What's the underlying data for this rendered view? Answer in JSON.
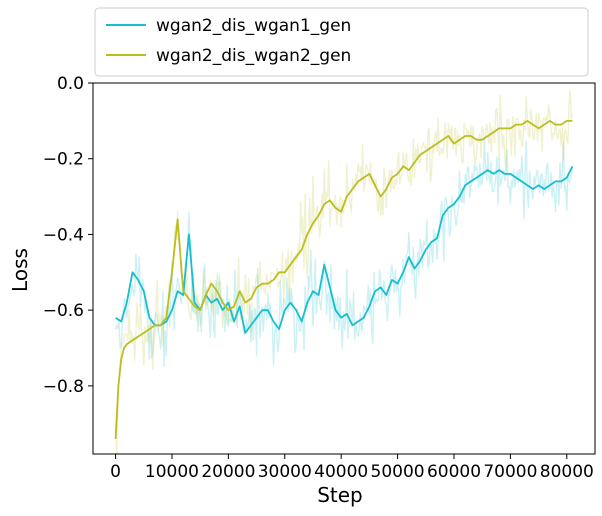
{
  "chart_data": {
    "type": "line",
    "xlabel": "Step",
    "ylabel": "Loss",
    "xlim": [
      -4000,
      85000
    ],
    "ylim": [
      -0.98,
      0.0
    ],
    "x_ticks": [
      0,
      10000,
      20000,
      30000,
      40000,
      50000,
      60000,
      70000,
      80000
    ],
    "x_tick_labels": [
      "0",
      "10000",
      "20000",
      "30000",
      "40000",
      "50000",
      "60000",
      "70000",
      "80000"
    ],
    "y_ticks": [
      0.0,
      -0.2,
      -0.4,
      -0.6,
      -0.8
    ],
    "y_tick_labels": [
      "0.0",
      "−0.2",
      "−0.4",
      "−0.6",
      "−0.8"
    ],
    "legend_position": "top-outside",
    "colors": {
      "series1": "#17becf",
      "series2": "#bcbd22",
      "background": "#ffffff",
      "axis": "#000000"
    },
    "series": [
      {
        "name": "wgan2_dis_wgan1_gen",
        "color": "#17becf",
        "raw_alpha": 0.22,
        "x": [
          0,
          1000,
          2000,
          3000,
          4000,
          5000,
          6000,
          7000,
          8000,
          9000,
          10000,
          11000,
          12000,
          13000,
          14000,
          15000,
          16000,
          17000,
          18000,
          19000,
          20000,
          21000,
          22000,
          23000,
          24000,
          25000,
          26000,
          27000,
          28000,
          29000,
          30000,
          31000,
          32000,
          33000,
          34000,
          35000,
          36000,
          37000,
          38000,
          39000,
          40000,
          41000,
          42000,
          43000,
          44000,
          45000,
          46000,
          47000,
          48000,
          49000,
          50000,
          51000,
          52000,
          53000,
          54000,
          55000,
          56000,
          57000,
          58000,
          59000,
          60000,
          61000,
          62000,
          63000,
          64000,
          65000,
          66000,
          67000,
          68000,
          69000,
          70000,
          71000,
          72000,
          73000,
          74000,
          75000,
          76000,
          77000,
          78000,
          79000,
          80000,
          81000
        ],
        "values": [
          -0.62,
          -0.63,
          -0.58,
          -0.5,
          -0.52,
          -0.55,
          -0.62,
          -0.64,
          -0.64,
          -0.63,
          -0.6,
          -0.55,
          -0.56,
          -0.4,
          -0.58,
          -0.6,
          -0.56,
          -0.58,
          -0.57,
          -0.6,
          -0.58,
          -0.63,
          -0.59,
          -0.66,
          -0.64,
          -0.62,
          -0.6,
          -0.6,
          -0.63,
          -0.65,
          -0.6,
          -0.58,
          -0.6,
          -0.63,
          -0.58,
          -0.55,
          -0.56,
          -0.48,
          -0.54,
          -0.6,
          -0.62,
          -0.61,
          -0.64,
          -0.63,
          -0.62,
          -0.59,
          -0.55,
          -0.54,
          -0.56,
          -0.52,
          -0.53,
          -0.5,
          -0.46,
          -0.49,
          -0.47,
          -0.44,
          -0.42,
          -0.41,
          -0.35,
          -0.33,
          -0.32,
          -0.3,
          -0.27,
          -0.26,
          -0.25,
          -0.24,
          -0.23,
          -0.24,
          -0.23,
          -0.24,
          -0.24,
          -0.25,
          -0.26,
          -0.27,
          -0.28,
          -0.27,
          -0.28,
          -0.27,
          -0.26,
          -0.26,
          -0.25,
          -0.22
        ]
      },
      {
        "name": "wgan2_dis_wgan2_gen",
        "color": "#bcbd22",
        "raw_alpha": 0.22,
        "x": [
          0,
          500,
          1000,
          1500,
          2000,
          3000,
          4000,
          5000,
          6000,
          7000,
          8000,
          9000,
          10000,
          11000,
          12000,
          13000,
          14000,
          15000,
          16000,
          17000,
          18000,
          19000,
          20000,
          21000,
          22000,
          23000,
          24000,
          25000,
          26000,
          27000,
          28000,
          29000,
          30000,
          31000,
          32000,
          33000,
          34000,
          35000,
          36000,
          37000,
          38000,
          39000,
          40000,
          41000,
          42000,
          43000,
          44000,
          45000,
          46000,
          47000,
          48000,
          49000,
          50000,
          51000,
          52000,
          53000,
          54000,
          55000,
          56000,
          57000,
          58000,
          59000,
          60000,
          61000,
          62000,
          63000,
          64000,
          65000,
          66000,
          67000,
          68000,
          69000,
          70000,
          71000,
          72000,
          73000,
          74000,
          75000,
          76000,
          77000,
          78000,
          79000,
          80000,
          81000
        ],
        "values": [
          -0.94,
          -0.8,
          -0.73,
          -0.7,
          -0.69,
          -0.68,
          -0.67,
          -0.66,
          -0.65,
          -0.64,
          -0.64,
          -0.62,
          -0.5,
          -0.36,
          -0.55,
          -0.57,
          -0.59,
          -0.6,
          -0.56,
          -0.53,
          -0.55,
          -0.58,
          -0.6,
          -0.59,
          -0.55,
          -0.58,
          -0.57,
          -0.54,
          -0.53,
          -0.53,
          -0.52,
          -0.5,
          -0.5,
          -0.48,
          -0.46,
          -0.44,
          -0.4,
          -0.37,
          -0.35,
          -0.32,
          -0.31,
          -0.33,
          -0.34,
          -0.3,
          -0.28,
          -0.26,
          -0.25,
          -0.24,
          -0.27,
          -0.3,
          -0.28,
          -0.25,
          -0.24,
          -0.22,
          -0.23,
          -0.21,
          -0.19,
          -0.18,
          -0.17,
          -0.16,
          -0.15,
          -0.14,
          -0.16,
          -0.15,
          -0.14,
          -0.14,
          -0.15,
          -0.15,
          -0.14,
          -0.13,
          -0.12,
          -0.12,
          -0.12,
          -0.11,
          -0.11,
          -0.1,
          -0.11,
          -0.12,
          -0.11,
          -0.1,
          -0.11,
          -0.11,
          -0.1,
          -0.1
        ]
      }
    ]
  }
}
